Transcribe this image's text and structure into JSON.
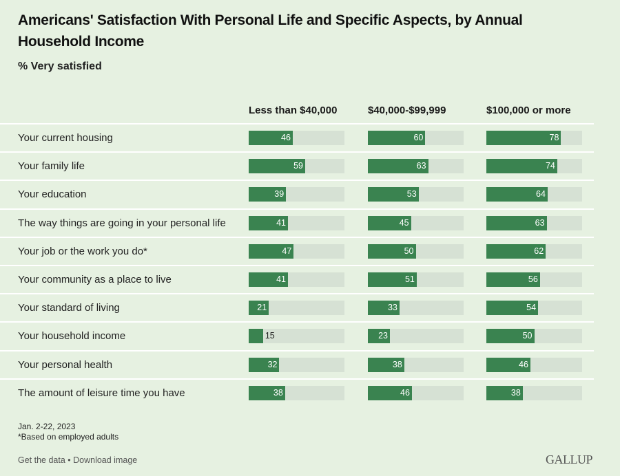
{
  "header": {
    "title": "Americans' Satisfaction With Personal Life and Specific Aspects, by Annual Household Income",
    "subtitle": "% Very satisfied"
  },
  "chart_data": {
    "type": "bar",
    "orientation": "horizontal",
    "title": "Americans' Satisfaction With Personal Life and Specific Aspects, by Annual Household Income",
    "subtitle": "% Very satisfied",
    "xlabel": "",
    "ylabel": "",
    "xlim": [
      0,
      100
    ],
    "categories": [
      "Your current housing",
      "Your family life",
      "Your education",
      "The way things are going in your personal life",
      "Your job or the work you do*",
      "Your community as a place to live",
      "Your standard of living",
      "Your household income",
      "Your personal health",
      "The amount of leisure time you have"
    ],
    "series": [
      {
        "name": "Less than $40,000",
        "values": [
          46,
          59,
          39,
          41,
          47,
          41,
          21,
          15,
          32,
          38
        ]
      },
      {
        "name": "$40,000-$99,999",
        "values": [
          60,
          63,
          53,
          45,
          50,
          51,
          33,
          23,
          38,
          46
        ]
      },
      {
        "name": "$100,000 or more",
        "values": [
          78,
          74,
          64,
          63,
          62,
          56,
          54,
          50,
          46,
          38
        ]
      }
    ],
    "colors": {
      "bar": "#3a8350",
      "track": "#d6e1d4",
      "background": "#e6f1e1"
    }
  },
  "footer": {
    "date": "Jan. 2-22, 2023",
    "note": "*Based on employed adults",
    "links": "Get the data • Download image",
    "logo": "GALLUP"
  }
}
